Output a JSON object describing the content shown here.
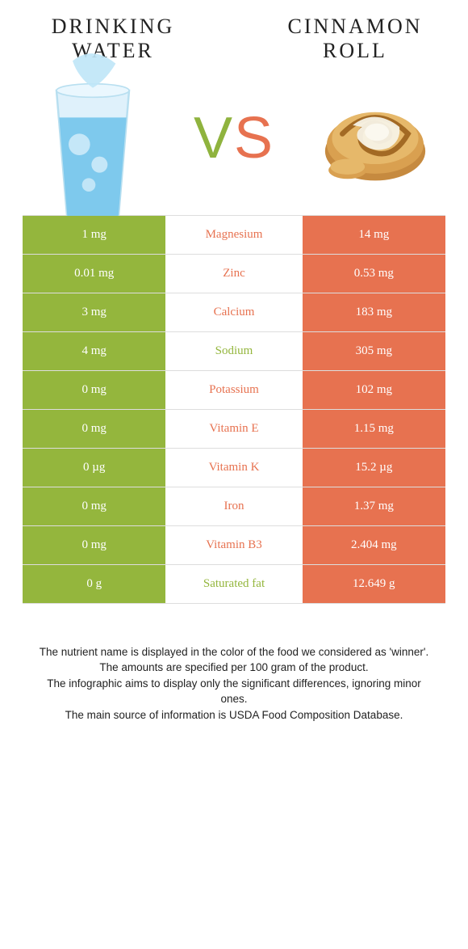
{
  "colors": {
    "left": "#94b63d",
    "right": "#e77250",
    "white": "#ffffff"
  },
  "left_title": "Drinking water",
  "right_title": "Cinnamon roll",
  "vs_v": "V",
  "vs_s": "S",
  "rows": [
    {
      "left": "1 mg",
      "label": "Magnesium",
      "right": "14 mg",
      "winner": "right"
    },
    {
      "left": "0.01 mg",
      "label": "Zinc",
      "right": "0.53 mg",
      "winner": "right"
    },
    {
      "left": "3 mg",
      "label": "Calcium",
      "right": "183 mg",
      "winner": "right"
    },
    {
      "left": "4 mg",
      "label": "Sodium",
      "right": "305 mg",
      "winner": "left"
    },
    {
      "left": "0 mg",
      "label": "Potassium",
      "right": "102 mg",
      "winner": "right"
    },
    {
      "left": "0 mg",
      "label": "Vitamin E",
      "right": "1.15 mg",
      "winner": "right"
    },
    {
      "left": "0 µg",
      "label": "Vitamin K",
      "right": "15.2 µg",
      "winner": "right"
    },
    {
      "left": "0 mg",
      "label": "Iron",
      "right": "1.37 mg",
      "winner": "right"
    },
    {
      "left": "0 mg",
      "label": "Vitamin B3",
      "right": "2.404 mg",
      "winner": "right"
    },
    {
      "left": "0 g",
      "label": "Saturated fat",
      "right": "12.649 g",
      "winner": "left"
    }
  ],
  "footnotes": [
    "The nutrient name is displayed in the color of the food we considered as 'winner'.",
    "The amounts are specified per 100 gram of the product.",
    "The infographic aims to display only the significant differences, ignoring minor ones.",
    "The main source of information is USDA Food Composition Database."
  ]
}
